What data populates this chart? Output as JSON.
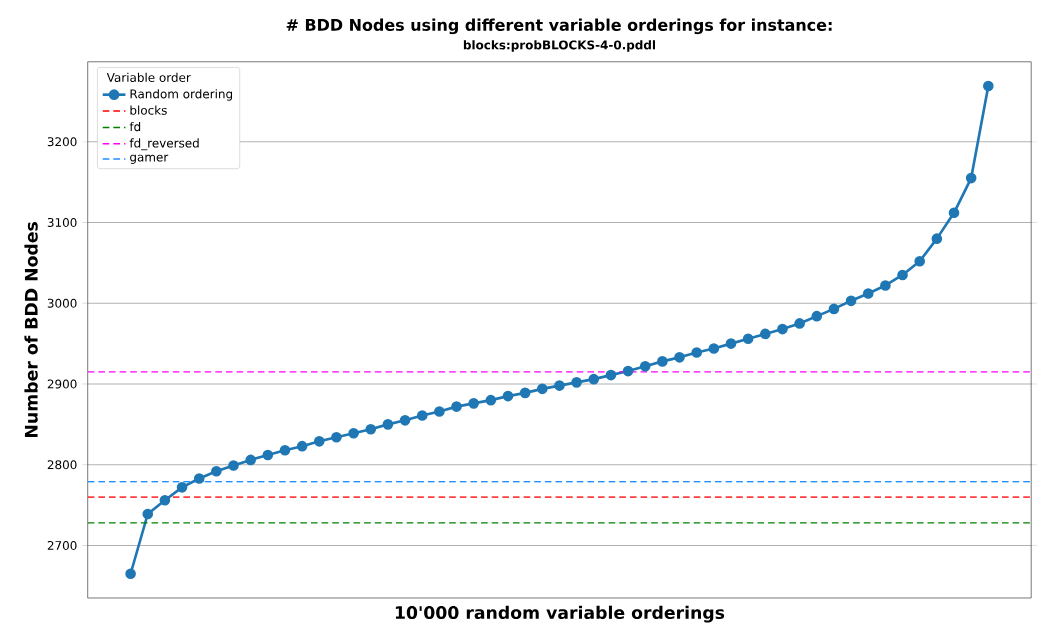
{
  "chart_data": {
    "type": "line",
    "title": "# BDD Nodes using different variable orderings for instance:",
    "subtitle": "blocks:probBLOCKS-4-0.pddl",
    "xlabel": "10'000 random variable orderings",
    "ylabel": "Number of BDD Nodes",
    "legend_title": "Variable order",
    "categories": [
      null,
      null,
      null,
      null,
      null,
      null,
      null,
      null,
      null,
      null,
      null,
      null,
      null,
      null,
      null,
      null,
      null,
      null,
      null,
      null,
      null,
      null,
      null,
      null,
      null,
      null,
      null,
      null,
      null,
      null,
      null,
      null,
      null,
      null,
      null,
      null,
      null,
      null,
      null,
      null,
      null,
      null,
      null,
      null,
      null,
      null,
      null,
      null,
      null,
      null,
      null
    ],
    "series": [
      {
        "name": "Random ordering",
        "color": "#1f77b4",
        "values": [
          2665,
          2739,
          2756,
          2772,
          2783,
          2792,
          2799,
          2806,
          2812,
          2818,
          2823,
          2829,
          2834,
          2839,
          2844,
          2850,
          2855,
          2861,
          2866,
          2872,
          2876,
          2880,
          2885,
          2889,
          2894,
          2898,
          2902,
          2906,
          2911,
          2916,
          2922,
          2928,
          2933,
          2939,
          2944,
          2950,
          2956,
          2962,
          2968,
          2975,
          2984,
          2993,
          3003,
          3012,
          3022,
          3035,
          3052,
          3080,
          3112,
          3155,
          3269
        ]
      }
    ],
    "ref_lines": [
      {
        "axis": "y",
        "value": 2760,
        "label": "blocks",
        "color": "#ff0000",
        "line_style": "dashed"
      },
      {
        "axis": "y",
        "value": 2728,
        "label": "fd",
        "color": "#008000",
        "line_style": "dashed"
      },
      {
        "axis": "y",
        "value": 2915,
        "label": "fd_reversed",
        "color": "#ff00ff",
        "line_style": "dashed"
      },
      {
        "axis": "y",
        "value": 2779,
        "label": "gamer",
        "color": "#1e90ff",
        "line_style": "dashed"
      }
    ],
    "ylim": [
      2635,
      3299
    ],
    "yticks": [
      2700,
      2800,
      2900,
      3000,
      3100,
      3200
    ],
    "tick_labels": "y",
    "grid": "y",
    "legend": "top left",
    "marker": "circle",
    "line_style": "solid"
  }
}
